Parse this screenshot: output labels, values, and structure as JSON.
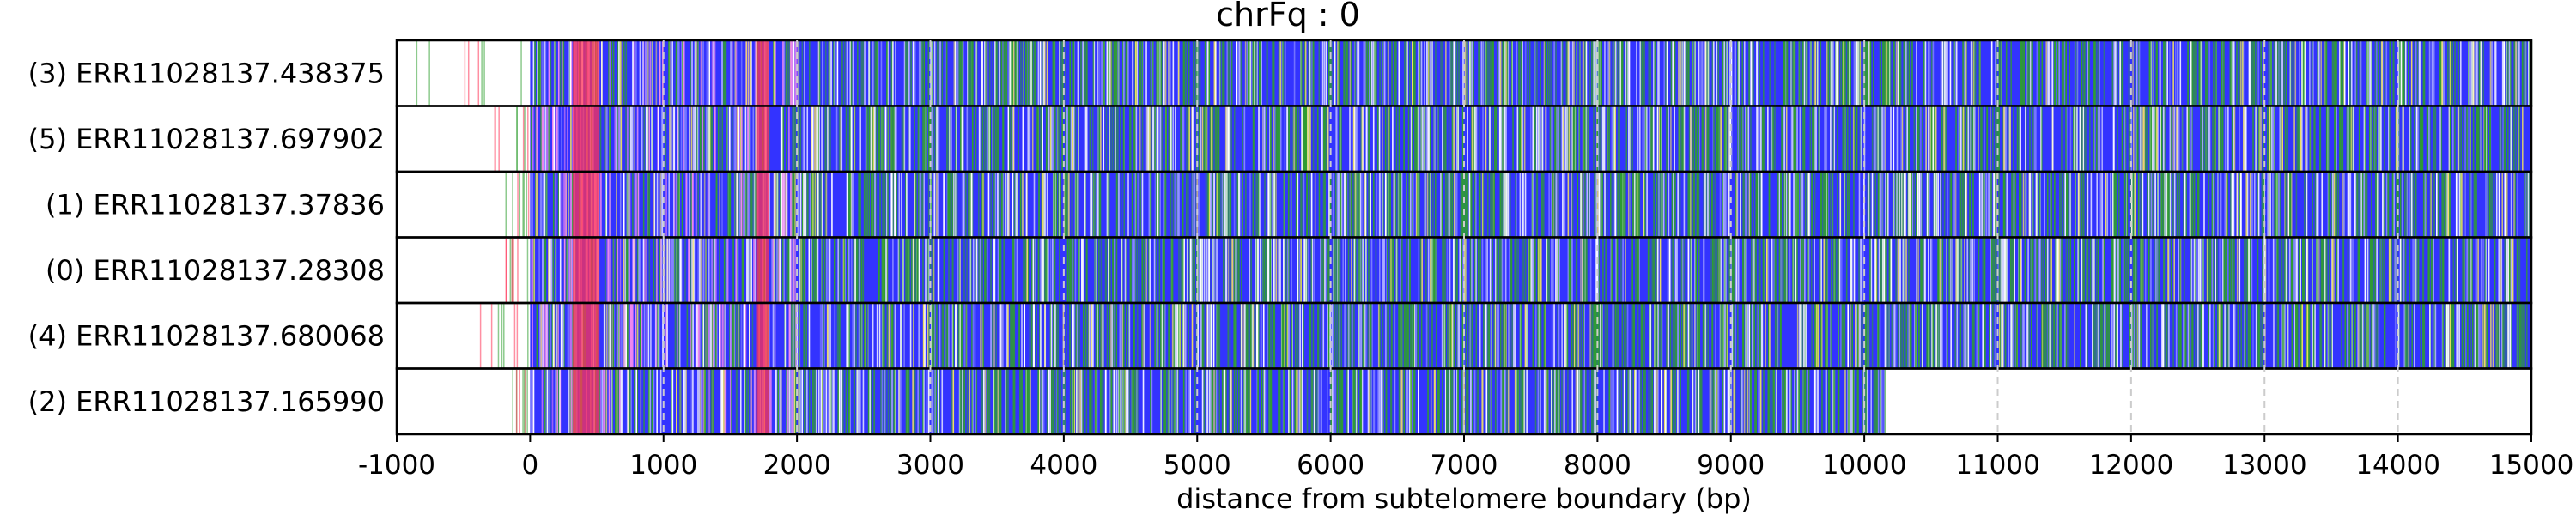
{
  "chart_data": {
    "type": "heatmap",
    "title": "chrFq : 0",
    "xlabel": "distance from subtelomere boundary (bp)",
    "ylabel": "",
    "xlim": [
      -1000,
      15000
    ],
    "xticks": [
      -1000,
      0,
      1000,
      2000,
      3000,
      4000,
      5000,
      6000,
      7000,
      8000,
      9000,
      10000,
      11000,
      12000,
      13000,
      14000,
      15000
    ],
    "vertical_gridlines": [
      1000,
      2000,
      3000,
      4000,
      5000,
      6000,
      7000,
      8000,
      9000,
      10000,
      11000,
      12000,
      13000,
      14000
    ],
    "grid": "vertical dashed",
    "colors": {
      "repeat_base": "#3333ff",
      "variant_green": "#2f9e2f",
      "variant_yellow": "#f0e060",
      "variant_white": "#ffffff",
      "telomere_red": "#ff3355",
      "telomere_pink": "#ee88ee",
      "gridline": "#cccccc"
    },
    "reads": [
      {
        "label": "(3) ERR11028137.438375",
        "start": -1000,
        "end": 15000,
        "repeat_start": 0
      },
      {
        "label": "(5) ERR11028137.697902",
        "start": -320,
        "end": 15000,
        "repeat_start": 0
      },
      {
        "label": "(1) ERR11028137.37836",
        "start": -200,
        "end": 15000,
        "repeat_start": 0
      },
      {
        "label": "(0) ERR11028137.28308",
        "start": -220,
        "end": 15000,
        "repeat_start": 0
      },
      {
        "label": "(4) ERR11028137.680068",
        "start": -380,
        "end": 15000,
        "repeat_start": 0
      },
      {
        "label": "(2) ERR11028137.165990",
        "start": -220,
        "end": 10150,
        "repeat_start": 0
      }
    ]
  }
}
